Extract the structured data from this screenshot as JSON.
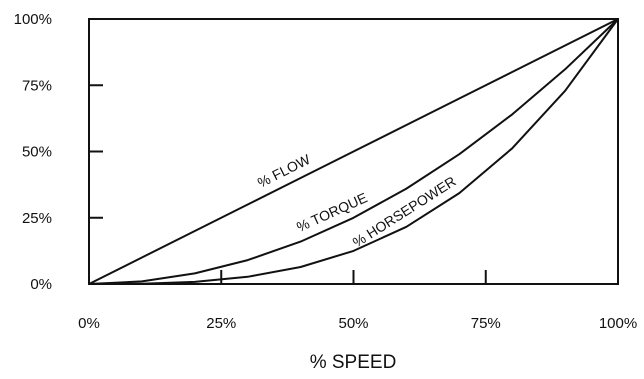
{
  "chart_data": {
    "type": "line",
    "title": "",
    "xlabel": "% SPEED",
    "ylabel": "",
    "xlim": [
      0,
      100
    ],
    "ylim": [
      0,
      100
    ],
    "grid": false,
    "x_ticks": [
      {
        "value": 0,
        "label": "0%"
      },
      {
        "value": 25,
        "label": "25%"
      },
      {
        "value": 50,
        "label": "50%"
      },
      {
        "value": 75,
        "label": "75%"
      },
      {
        "value": 100,
        "label": "100%"
      }
    ],
    "y_ticks": [
      {
        "value": 0,
        "label": "0%"
      },
      {
        "value": 25,
        "label": "25%"
      },
      {
        "value": 50,
        "label": "50%"
      },
      {
        "value": 75,
        "label": "75%"
      },
      {
        "value": 100,
        "label": "100%"
      }
    ],
    "x": [
      0,
      10,
      20,
      30,
      40,
      50,
      60,
      70,
      80,
      90,
      100
    ],
    "series": [
      {
        "name": "% FLOW",
        "values": [
          0,
          10,
          20,
          30,
          40,
          50,
          60,
          70,
          80,
          90,
          100
        ]
      },
      {
        "name": "% TORQUE",
        "values": [
          0,
          1,
          4,
          9,
          16,
          25,
          36,
          49,
          64,
          81,
          100
        ]
      },
      {
        "name": "% HORSEPOWER",
        "values": [
          0,
          0.1,
          0.8,
          2.7,
          6.4,
          12.5,
          21.6,
          34.3,
          51.2,
          72.9,
          100
        ]
      }
    ]
  }
}
